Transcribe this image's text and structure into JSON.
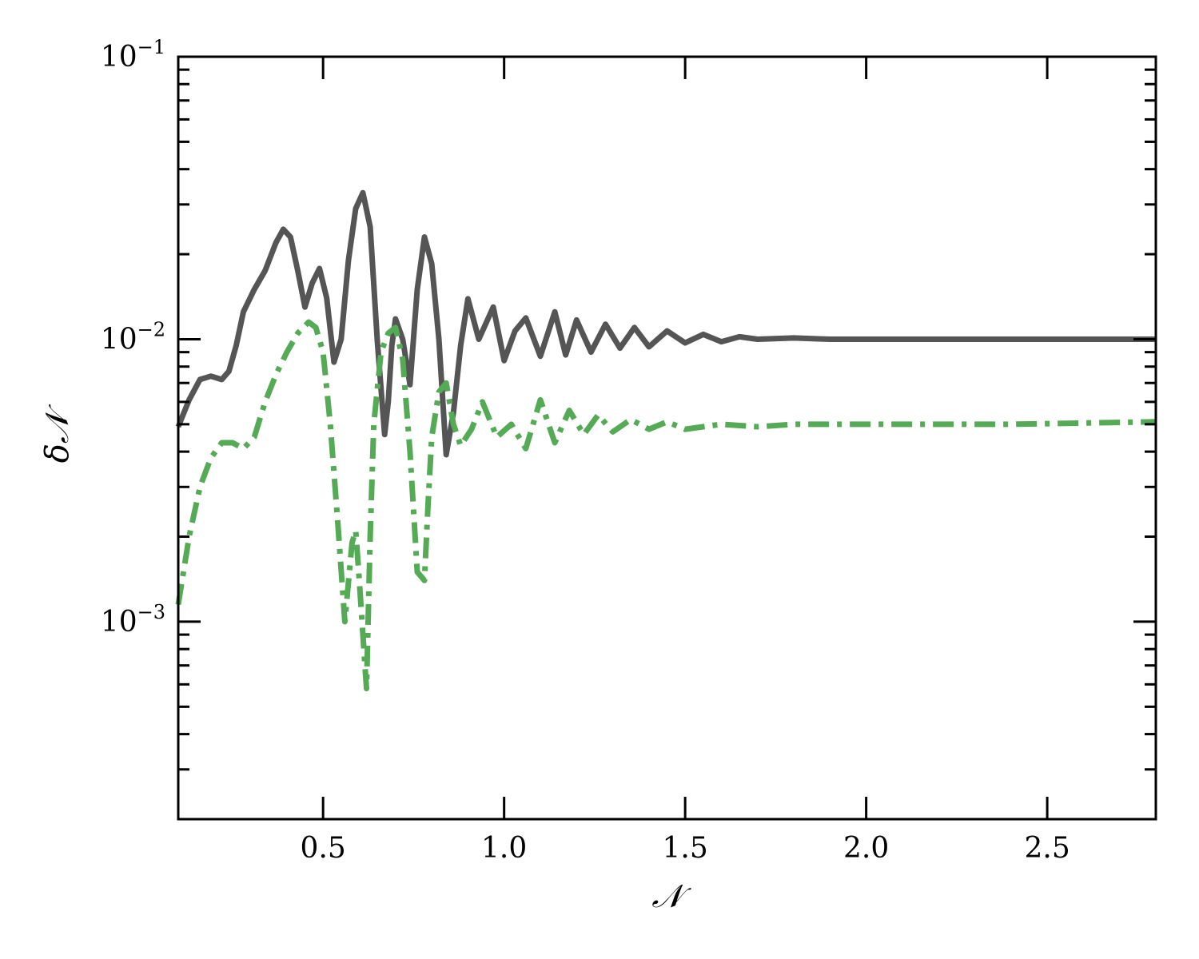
{
  "chart_data": {
    "type": "line",
    "xlabel": "𝒩",
    "ylabel": "δ𝒩",
    "xlim": [
      0.1,
      2.8
    ],
    "ylim": [
      0.0002,
      0.1
    ],
    "yscale": "log",
    "grid": false,
    "colors": {
      "series_dark": "#555555",
      "series_green": "#55aa55"
    },
    "x_ticks": [
      {
        "value": 0.5,
        "label": "0.5"
      },
      {
        "value": 1.0,
        "label": "1.0"
      },
      {
        "value": 1.5,
        "label": "1.5"
      },
      {
        "value": 2.0,
        "label": "2.0"
      },
      {
        "value": 2.5,
        "label": "2.5"
      }
    ],
    "y_ticks": [
      {
        "value": 0.001,
        "base": "10",
        "exp": "−3"
      },
      {
        "value": 0.01,
        "base": "10",
        "exp": "−2"
      },
      {
        "value": 0.1,
        "base": "10",
        "exp": "−1"
      }
    ],
    "series": [
      {
        "style": "solid",
        "x": [
          0.1,
          0.13,
          0.16,
          0.19,
          0.22,
          0.24,
          0.26,
          0.28,
          0.31,
          0.34,
          0.37,
          0.39,
          0.41,
          0.43,
          0.45,
          0.47,
          0.49,
          0.51,
          0.53,
          0.55,
          0.57,
          0.59,
          0.61,
          0.63,
          0.65,
          0.67,
          0.68,
          0.69,
          0.7,
          0.72,
          0.74,
          0.76,
          0.78,
          0.8,
          0.82,
          0.84,
          0.86,
          0.88,
          0.9,
          0.93,
          0.97,
          1.0,
          1.03,
          1.06,
          1.1,
          1.14,
          1.17,
          1.2,
          1.24,
          1.28,
          1.32,
          1.36,
          1.4,
          1.45,
          1.5,
          1.55,
          1.6,
          1.65,
          1.7,
          1.8,
          1.9,
          2.0,
          2.2,
          2.5,
          2.8
        ],
        "y": [
          0.0049,
          0.0061,
          0.0072,
          0.0074,
          0.0072,
          0.0077,
          0.0095,
          0.0125,
          0.015,
          0.0175,
          0.022,
          0.0245,
          0.023,
          0.0175,
          0.013,
          0.0158,
          0.0178,
          0.014,
          0.0083,
          0.01,
          0.019,
          0.029,
          0.033,
          0.025,
          0.0098,
          0.0046,
          0.006,
          0.0095,
          0.0118,
          0.01,
          0.0069,
          0.015,
          0.023,
          0.0185,
          0.01,
          0.0039,
          0.0055,
          0.0095,
          0.0139,
          0.01,
          0.013,
          0.0084,
          0.0107,
          0.0119,
          0.0087,
          0.0125,
          0.0088,
          0.0117,
          0.009,
          0.0113,
          0.0093,
          0.011,
          0.0094,
          0.0107,
          0.0097,
          0.0104,
          0.0098,
          0.0102,
          0.01,
          0.0101,
          0.01,
          0.01,
          0.01,
          0.01,
          0.01
        ]
      },
      {
        "style": "dashdot",
        "x": [
          0.1,
          0.13,
          0.16,
          0.19,
          0.22,
          0.25,
          0.28,
          0.31,
          0.34,
          0.37,
          0.4,
          0.43,
          0.46,
          0.48,
          0.5,
          0.52,
          0.54,
          0.56,
          0.58,
          0.59,
          0.6,
          0.62,
          0.63,
          0.64,
          0.66,
          0.68,
          0.7,
          0.72,
          0.74,
          0.76,
          0.78,
          0.79,
          0.8,
          0.82,
          0.84,
          0.86,
          0.88,
          0.91,
          0.94,
          0.98,
          1.02,
          1.06,
          1.1,
          1.14,
          1.18,
          1.22,
          1.26,
          1.3,
          1.35,
          1.4,
          1.45,
          1.5,
          1.6,
          1.7,
          1.8,
          2.0,
          2.4,
          2.8
        ],
        "y": [
          0.00115,
          0.002,
          0.003,
          0.0038,
          0.0043,
          0.0043,
          0.0041,
          0.0045,
          0.006,
          0.0075,
          0.009,
          0.0105,
          0.0115,
          0.011,
          0.009,
          0.005,
          0.0023,
          0.001,
          0.0019,
          0.0021,
          0.0014,
          0.00058,
          0.002,
          0.005,
          0.009,
          0.0105,
          0.011,
          0.0085,
          0.004,
          0.0015,
          0.0014,
          0.0026,
          0.0045,
          0.0065,
          0.007,
          0.005,
          0.0042,
          0.0048,
          0.006,
          0.0045,
          0.005,
          0.0041,
          0.0061,
          0.0043,
          0.0056,
          0.0046,
          0.0054,
          0.0047,
          0.0052,
          0.0048,
          0.0051,
          0.0048,
          0.005,
          0.0049,
          0.005,
          0.005,
          0.005,
          0.0051
        ]
      }
    ]
  }
}
